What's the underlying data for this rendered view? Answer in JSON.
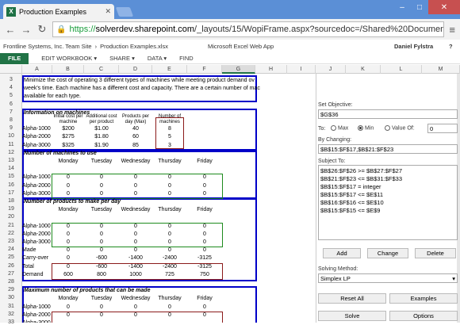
{
  "browser": {
    "tab_title": "Production Examples",
    "url_scheme": "https://",
    "url_host": "solverdev.sharepoint.com",
    "url_path": "/_layouts/15/WopiFrame.aspx?sourcedoc=/Shared%20Documents/Product"
  },
  "header": {
    "site": "Frontline Systems, Inc. Team Site",
    "separator": "›",
    "file": "Production Examples.xlsx",
    "app": "Microsoft Excel Web App",
    "user": "Daniel Fylstra",
    "help": "?"
  },
  "ribbon": {
    "file": "FILE",
    "tabs": [
      "EDIT WORKBOOK ▾",
      "SHARE ▾",
      "DATA ▾",
      "FIND"
    ]
  },
  "columns": [
    "A",
    "B",
    "C",
    "D",
    "E",
    "F",
    "G",
    "H",
    "I",
    "J",
    "K",
    "L",
    "M"
  ],
  "rows": [
    "3",
    "4",
    "5",
    "6",
    "7",
    "8",
    "9",
    "10",
    "11",
    "12",
    "13",
    "14",
    "15",
    "16",
    "17",
    "18",
    "19",
    "20",
    "21",
    "22",
    "23",
    "24",
    "25",
    "26",
    "27",
    "28",
    "29",
    "30",
    "31",
    "32",
    "33"
  ],
  "sheet": {
    "intro": [
      "Minimize the cost of operating 3 different types of machines while meeting product demand ov",
      "week's time.  Each machine has a different cost and capacity. There are a certain number of mac",
      "available for each type."
    ],
    "info_title": "Information on machines",
    "info_headers": [
      "Initial cost per machine",
      "Additional cost per product",
      "Products per day (Max)",
      "Number of machines"
    ],
    "machines": [
      "Alpha-1000",
      "Alpha-2000",
      "Alpha-3000"
    ],
    "info_rows": [
      [
        "$200",
        "$1.00",
        "40",
        "8"
      ],
      [
        "$275",
        "$1.80",
        "60",
        "5"
      ],
      [
        "$325",
        "$1.90",
        "85",
        "3"
      ]
    ],
    "days": [
      "Monday",
      "Tuesday",
      "Wednesday",
      "Thursday",
      "Friday"
    ],
    "sec_machines": "Number of machines to use",
    "sec_products": "Number of products to make per day",
    "sec_max": "Maximum number of products that can be made",
    "zero": "0",
    "made_label": "Made",
    "carry_label": "Carry-over",
    "total_label": "Total",
    "demand_label": "Demand",
    "made": [
      "0",
      "0",
      "0",
      "0",
      "0"
    ],
    "carry": [
      "0",
      "-600",
      "-1400",
      "-2400",
      "-3125"
    ],
    "total": [
      "0",
      "-600",
      "-1400",
      "-2400",
      "-3125"
    ],
    "demand": [
      "600",
      "800",
      "1000",
      "725",
      "750"
    ],
    "max_first": [
      "Alpha-1000"
    ]
  },
  "solver": {
    "set_objective_label": "Set Objective:",
    "objective": "$G$36",
    "to_label": "To:",
    "max": "Max",
    "min": "Min",
    "valueof": "Value Of:",
    "value": "0",
    "by_changing_label": "By Changing:",
    "by_changing": "$B$15:$F$17,$B$21:$F$23",
    "subject_label": "Subject To:",
    "constraints": [
      "$B$26:$F$26 >= $B$27:$F$27",
      "$B$21:$F$23 <= $B$31:$F$33",
      "$B$15:$F$17 = integer",
      "$B$15:$F$17 <= $E$11",
      "$B$16:$F$16 <= $E$10",
      "$B$15:$F$15 <= $E$9"
    ],
    "add": "Add",
    "change": "Change",
    "delete": "Delete",
    "method_label": "Solving Method:",
    "method": "Simplex LP",
    "reset": "Reset All",
    "examples": "Examples",
    "solve": "Solve",
    "options": "Options"
  }
}
